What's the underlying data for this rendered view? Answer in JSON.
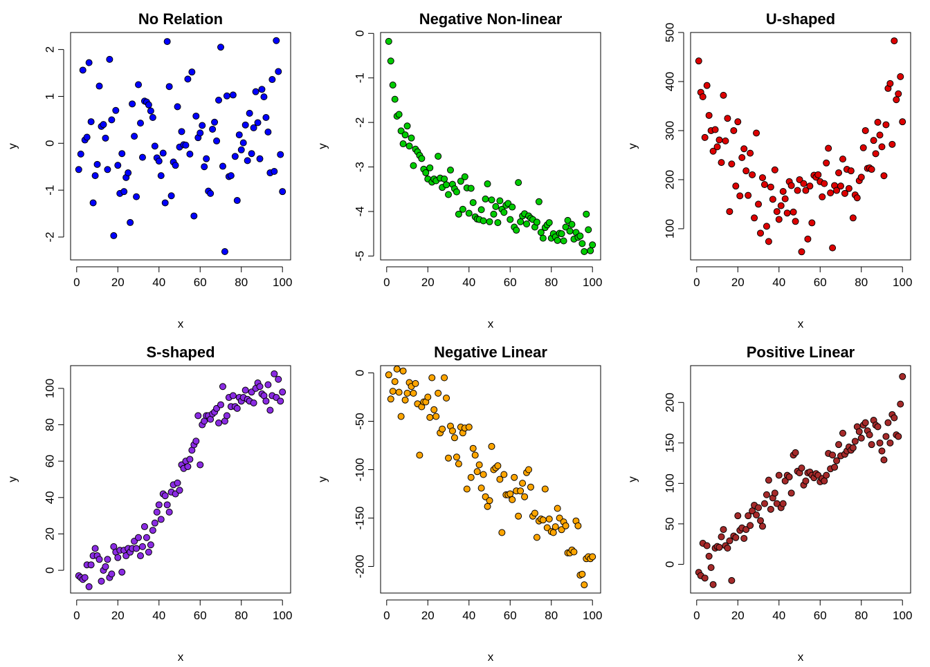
{
  "chart_data": [
    {
      "type": "scatter",
      "title": "No Relation",
      "xlabel": "x",
      "ylabel": "y",
      "xlim": [
        -2.96,
        103.96
      ],
      "ylim": [
        -2.487,
        2.363
      ],
      "xticks": [
        0,
        20,
        40,
        60,
        80,
        100
      ],
      "yticks": [
        -2,
        -1,
        0,
        1,
        2
      ],
      "color": "#0000ff",
      "x": [
        1,
        2,
        3,
        4,
        5,
        6,
        7,
        8,
        9,
        10,
        11,
        12,
        13,
        14,
        15,
        16,
        17,
        18,
        19,
        20,
        21,
        22,
        23,
        24,
        25,
        26,
        27,
        28,
        29,
        30,
        31,
        32,
        33,
        34,
        35,
        36,
        37,
        38,
        39,
        40,
        41,
        42,
        43,
        44,
        45,
        46,
        47,
        48,
        49,
        50,
        51,
        52,
        53,
        54,
        55,
        56,
        57,
        58,
        59,
        60,
        61,
        62,
        63,
        64,
        65,
        66,
        67,
        68,
        69,
        70,
        71,
        72,
        73,
        74,
        75,
        76,
        77,
        78,
        79,
        80,
        81,
        82,
        83,
        84,
        85,
        86,
        87,
        88,
        89,
        90,
        91,
        92,
        93,
        94,
        95,
        96,
        97,
        98,
        99,
        100
      ],
      "y": [
        -0.56,
        -0.23,
        1.56,
        0.07,
        0.13,
        1.72,
        0.46,
        -1.27,
        -0.69,
        -0.45,
        1.22,
        0.36,
        0.4,
        0.11,
        -0.56,
        1.79,
        0.5,
        -1.97,
        0.7,
        -0.47,
        -1.07,
        -0.22,
        -1.03,
        -0.73,
        -0.63,
        -1.69,
        0.84,
        0.15,
        -1.14,
        1.25,
        0.43,
        -0.3,
        0.9,
        0.88,
        0.82,
        0.69,
        0.55,
        -0.06,
        -0.31,
        -0.38,
        -0.69,
        -0.21,
        -1.27,
        2.17,
        1.21,
        -1.12,
        -0.4,
        -0.47,
        0.78,
        -0.08,
        0.25,
        -0.03,
        -0.04,
        1.37,
        -0.23,
        1.52,
        -1.55,
        0.58,
        0.12,
        0.22,
        0.38,
        -0.5,
        -0.33,
        -1.02,
        -1.07,
        0.3,
        0.45,
        0.05,
        0.92,
        2.05,
        -0.49,
        -2.31,
        1.01,
        -0.71,
        -0.69,
        1.03,
        -0.28,
        -1.22,
        0.18,
        -0.14,
        0.01,
        0.39,
        -0.37,
        0.64,
        -0.22,
        0.33,
        1.1,
        0.44,
        -0.33,
        1.15,
        0.99,
        0.55,
        0.24,
        -0.63,
        1.36,
        -0.6,
        2.19,
        1.53,
        -0.24,
        -1.03
      ]
    },
    {
      "type": "scatter",
      "title": "Negative Non-linear",
      "xlabel": "x",
      "ylabel": "y",
      "xlim": [
        -2.96,
        103.96
      ],
      "ylim": [
        -5.087,
        0.02
      ],
      "xticks": [
        0,
        20,
        40,
        60,
        80,
        100
      ],
      "yticks": [
        -5,
        -4,
        -3,
        -2,
        -1,
        0
      ],
      "color": "#00cc00",
      "x": [
        1,
        2,
        3,
        4,
        5,
        6,
        7,
        8,
        9,
        10,
        11,
        12,
        13,
        14,
        15,
        16,
        17,
        18,
        19,
        20,
        21,
        22,
        23,
        24,
        25,
        26,
        27,
        28,
        29,
        30,
        31,
        32,
        33,
        34,
        35,
        36,
        37,
        38,
        39,
        40,
        41,
        42,
        43,
        44,
        45,
        46,
        47,
        48,
        49,
        50,
        51,
        52,
        53,
        54,
        55,
        56,
        57,
        58,
        59,
        60,
        61,
        62,
        63,
        64,
        65,
        66,
        67,
        68,
        69,
        70,
        71,
        72,
        73,
        74,
        75,
        76,
        77,
        78,
        79,
        80,
        81,
        82,
        83,
        84,
        85,
        86,
        87,
        88,
        89,
        90,
        91,
        92,
        93,
        94,
        95,
        96,
        97,
        98,
        99,
        100
      ],
      "y": [
        -0.18,
        -0.62,
        -1.16,
        -1.48,
        -1.86,
        -1.82,
        -2.19,
        -2.48,
        -2.28,
        -2.08,
        -2.53,
        -2.35,
        -2.97,
        -2.6,
        -2.66,
        -2.74,
        -2.81,
        -3.05,
        -3.13,
        -3.27,
        -3.02,
        -3.34,
        -3.27,
        -3.31,
        -2.76,
        -3.25,
        -3.46,
        -3.27,
        -3.4,
        -3.62,
        -3.07,
        -3.39,
        -3.49,
        -3.56,
        -4.06,
        -3.32,
        -3.95,
        -3.22,
        -3.47,
        -4.04,
        -3.48,
        -3.8,
        -4.12,
        -4.17,
        -4.18,
        -3.96,
        -4.21,
        -3.72,
        -3.38,
        -4.23,
        -3.74,
        -4.06,
        -3.89,
        -4.25,
        -3.76,
        -3.95,
        -4.02,
        -3.86,
        -3.82,
        -4.18,
        -3.9,
        -4.35,
        -4.42,
        -3.35,
        -4.23,
        -4.1,
        -4.05,
        -4.28,
        -4.1,
        -4.15,
        -4.18,
        -4.35,
        -4.24,
        -3.78,
        -4.47,
        -4.6,
        -4.36,
        -4.3,
        -4.25,
        -4.6,
        -4.5,
        -4.57,
        -4.65,
        -4.49,
        -4.5,
        -4.66,
        -4.35,
        -4.2,
        -4.44,
        -4.29,
        -4.62,
        -4.47,
        -4.58,
        -4.55,
        -4.72,
        -4.9,
        -4.06,
        -4.41,
        -4.88,
        -4.75
      ]
    },
    {
      "type": "scatter",
      "title": "U-shaped",
      "xlabel": "x",
      "ylabel": "y",
      "xlim": [
        -2.96,
        103.96
      ],
      "ylim": [
        36.5,
        500
      ],
      "xticks": [
        0,
        20,
        40,
        60,
        80,
        100
      ],
      "yticks": [
        100,
        200,
        300,
        400,
        500
      ],
      "color": "#dd0000",
      "x": [
        1,
        2,
        3,
        4,
        5,
        6,
        7,
        8,
        9,
        10,
        11,
        12,
        13,
        14,
        15,
        16,
        17,
        18,
        19,
        20,
        21,
        22,
        23,
        24,
        25,
        26,
        27,
        28,
        29,
        30,
        31,
        32,
        33,
        34,
        35,
        36,
        37,
        38,
        39,
        40,
        41,
        42,
        43,
        44,
        45,
        46,
        47,
        48,
        49,
        50,
        51,
        52,
        53,
        54,
        55,
        56,
        57,
        58,
        59,
        60,
        61,
        62,
        63,
        64,
        65,
        66,
        67,
        68,
        69,
        70,
        71,
        72,
        73,
        74,
        75,
        76,
        77,
        78,
        79,
        80,
        81,
        82,
        83,
        84,
        85,
        86,
        87,
        88,
        89,
        90,
        91,
        92,
        93,
        94,
        95,
        96,
        97,
        98,
        99,
        100
      ],
      "y": [
        442,
        378,
        369,
        286,
        392,
        331,
        300,
        258,
        302,
        267,
        281,
        235,
        372,
        279,
        325,
        135,
        232,
        300,
        187,
        318,
        167,
        245,
        263,
        218,
        168,
        254,
        210,
        122,
        295,
        150,
        91,
        204,
        190,
        105,
        74,
        185,
        160,
        220,
        135,
        119,
        147,
        176,
        161,
        132,
        196,
        188,
        134,
        115,
        178,
        200,
        53,
        192,
        178,
        79,
        187,
        112,
        209,
        205,
        210,
        196,
        165,
        192,
        234,
        264,
        173,
        61,
        188,
        178,
        214,
        187,
        242,
        172,
        221,
        182,
        218,
        122,
        169,
        163,
        198,
        205,
        265,
        300,
        223,
        224,
        221,
        280,
        253,
        317,
        291,
        267,
        208,
        312,
        386,
        396,
        272,
        483,
        363,
        375,
        410,
        318
      ]
    },
    {
      "type": "scatter",
      "title": "S-shaped",
      "xlabel": "x",
      "ylabel": "y",
      "xlim": [
        -2.96,
        103.96
      ],
      "ylim": [
        -12.5,
        112.5
      ],
      "xticks": [
        0,
        20,
        40,
        60,
        80,
        100
      ],
      "yticks": [
        0,
        20,
        40,
        60,
        80,
        100
      ],
      "color": "#8a2be2",
      "x": [
        1,
        2,
        3,
        4,
        5,
        6,
        7,
        8,
        9,
        10,
        11,
        12,
        13,
        14,
        15,
        16,
        17,
        18,
        19,
        20,
        21,
        22,
        23,
        24,
        25,
        26,
        27,
        28,
        29,
        30,
        31,
        32,
        33,
        34,
        35,
        36,
        37,
        38,
        39,
        40,
        41,
        42,
        43,
        44,
        45,
        46,
        47,
        48,
        49,
        50,
        51,
        52,
        53,
        54,
        55,
        56,
        57,
        58,
        59,
        60,
        61,
        62,
        63,
        64,
        65,
        66,
        67,
        68,
        69,
        70,
        71,
        72,
        73,
        74,
        75,
        76,
        77,
        78,
        79,
        80,
        81,
        82,
        83,
        84,
        85,
        86,
        87,
        88,
        89,
        90,
        91,
        92,
        93,
        94,
        95,
        96,
        97,
        98,
        99,
        100
      ],
      "y": [
        -3,
        -4,
        -5,
        -4,
        3,
        -9,
        3,
        8,
        12,
        8,
        6,
        -6,
        0,
        2,
        6,
        -4,
        -2,
        13,
        10,
        7,
        11,
        -1,
        11,
        8,
        12,
        10,
        12,
        16,
        12,
        18,
        8,
        13,
        24,
        18,
        10,
        14,
        22,
        26,
        32,
        36,
        28,
        42,
        41,
        36,
        32,
        43,
        47,
        42,
        48,
        44,
        58,
        56,
        60,
        57,
        61,
        66,
        69,
        71,
        85,
        58,
        80,
        82,
        85,
        85,
        83,
        86,
        87,
        89,
        81,
        91,
        101,
        82,
        85,
        95,
        90,
        96,
        90,
        89,
        95,
        93,
        95,
        99,
        94,
        93,
        98,
        92,
        100,
        103,
        101,
        97,
        96,
        93,
        102,
        88,
        96,
        108,
        95,
        105,
        93,
        98
      ]
    },
    {
      "type": "scatter",
      "title": "Negative Linear",
      "xlabel": "x",
      "ylabel": "y",
      "xlim": [
        -2.96,
        103.96
      ],
      "ylim": [
        -227.5,
        7.5
      ],
      "xticks": [
        0,
        20,
        40,
        60,
        80,
        100
      ],
      "yticks": [
        -200,
        -150,
        -100,
        -50,
        0
      ],
      "color": "#ffa500",
      "x": [
        1,
        2,
        3,
        4,
        5,
        6,
        7,
        8,
        9,
        10,
        11,
        12,
        13,
        14,
        15,
        16,
        17,
        18,
        19,
        20,
        21,
        22,
        23,
        24,
        25,
        26,
        27,
        28,
        29,
        30,
        31,
        32,
        33,
        34,
        35,
        36,
        37,
        38,
        39,
        40,
        41,
        42,
        43,
        44,
        45,
        46,
        47,
        48,
        49,
        50,
        51,
        52,
        53,
        54,
        55,
        56,
        57,
        58,
        59,
        60,
        61,
        62,
        63,
        64,
        65,
        66,
        67,
        68,
        69,
        70,
        71,
        72,
        73,
        74,
        75,
        76,
        77,
        78,
        79,
        80,
        81,
        82,
        83,
        84,
        85,
        86,
        87,
        88,
        89,
        90,
        91,
        92,
        93,
        94,
        95,
        96,
        97,
        98,
        99,
        100
      ],
      "y": [
        -2,
        -27,
        -19,
        -9,
        4,
        -20,
        -45,
        2,
        -28,
        -21,
        -10,
        -14,
        -21,
        -11,
        -32,
        -85,
        -35,
        -30,
        -30,
        -25,
        -46,
        -5,
        -38,
        -45,
        -21,
        -62,
        -58,
        -5,
        -26,
        -88,
        -55,
        -60,
        -67,
        -87,
        -94,
        -56,
        -62,
        -57,
        -120,
        -56,
        -108,
        -78,
        -85,
        -102,
        -95,
        -119,
        -105,
        -128,
        -138,
        -132,
        -76,
        -100,
        -98,
        -96,
        -110,
        -165,
        -105,
        -126,
        -126,
        -125,
        -131,
        -108,
        -122,
        -148,
        -122,
        -114,
        -128,
        -103,
        -100,
        -118,
        -148,
        -145,
        -170,
        -153,
        -151,
        -152,
        -120,
        -160,
        -151,
        -164,
        -165,
        -159,
        -140,
        -150,
        -162,
        -154,
        -158,
        -186,
        -186,
        -183,
        -185,
        -153,
        -158,
        -209,
        -208,
        -219,
        -192,
        -190,
        -192,
        -190
      ]
    },
    {
      "type": "scatter",
      "title": "Positive Linear",
      "xlabel": "x",
      "ylabel": "y",
      "xlim": [
        -2.96,
        103.96
      ],
      "ylim": [
        -35.5,
        245.5
      ],
      "xticks": [
        0,
        20,
        40,
        60,
        80,
        100
      ],
      "yticks": [
        0,
        50,
        100,
        150,
        200
      ],
      "color": "#a52a2a",
      "x": [
        1,
        2,
        3,
        4,
        5,
        6,
        7,
        8,
        9,
        10,
        11,
        12,
        13,
        14,
        15,
        16,
        17,
        18,
        19,
        20,
        21,
        22,
        23,
        24,
        25,
        26,
        27,
        28,
        29,
        30,
        31,
        32,
        33,
        34,
        35,
        36,
        37,
        38,
        39,
        40,
        41,
        42,
        43,
        44,
        45,
        46,
        47,
        48,
        49,
        50,
        51,
        52,
        53,
        54,
        55,
        56,
        57,
        58,
        59,
        60,
        61,
        62,
        63,
        64,
        65,
        66,
        67,
        68,
        69,
        70,
        71,
        72,
        73,
        74,
        75,
        76,
        77,
        78,
        79,
        80,
        81,
        82,
        83,
        84,
        85,
        86,
        87,
        88,
        89,
        90,
        91,
        92,
        93,
        94,
        95,
        96,
        97,
        98,
        99,
        100
      ],
      "y": [
        -10,
        -14,
        26,
        -17,
        23,
        10,
        -4,
        -25,
        20,
        22,
        21,
        34,
        43,
        23,
        20,
        29,
        -20,
        35,
        33,
        60,
        42,
        45,
        32,
        43,
        60,
        48,
        66,
        73,
        61,
        70,
        54,
        47,
        75,
        86,
        104,
        68,
        82,
        88,
        75,
        110,
        70,
        75,
        103,
        110,
        108,
        88,
        135,
        138,
        115,
        113,
        119,
        98,
        103,
        113,
        114,
        110,
        107,
        112,
        110,
        102,
        106,
        103,
        110,
        137,
        118,
        135,
        120,
        128,
        148,
        134,
        162,
        136,
        140,
        145,
        141,
        144,
        152,
        170,
        164,
        156,
        172,
        175,
        165,
        160,
        148,
        178,
        172,
        170,
        150,
        140,
        129,
        158,
        175,
        150,
        185,
        181,
        160,
        158,
        198,
        232
      ]
    }
  ]
}
